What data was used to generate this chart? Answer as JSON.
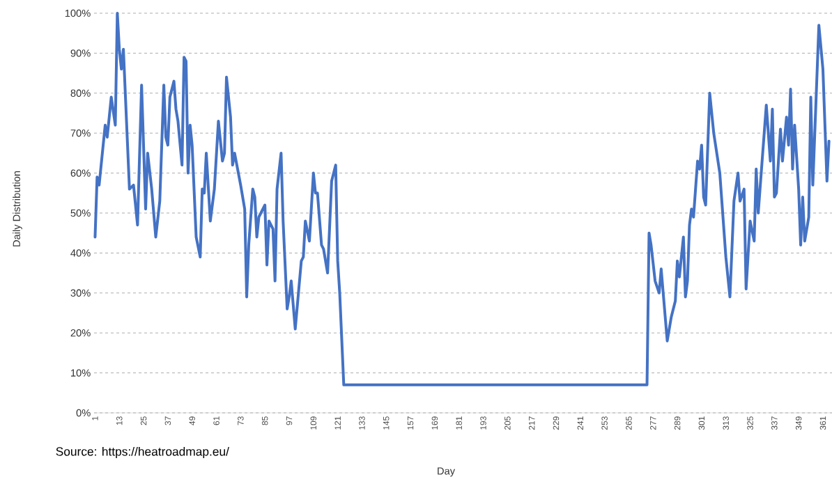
{
  "chart_data": {
    "type": "line",
    "xlabel": "Day",
    "ylabel": "Daily Distribution",
    "annotations": [
      "Source: https://heatroadmap.eu/"
    ],
    "x": [
      1,
      2,
      3,
      6,
      7,
      9,
      11,
      12,
      13,
      14,
      15,
      18,
      20,
      22,
      24,
      26,
      27,
      29,
      31,
      33,
      35,
      36,
      37,
      38,
      40,
      41,
      42,
      44,
      45,
      46,
      47,
      48,
      49,
      51,
      53,
      54,
      55,
      56,
      58,
      60,
      62,
      64,
      65,
      66,
      68,
      69,
      70,
      73,
      75,
      76,
      77,
      79,
      80,
      81,
      82,
      85,
      86,
      87,
      89,
      90,
      91,
      93,
      94,
      96,
      97,
      98,
      100,
      103,
      104,
      105,
      107,
      109,
      110,
      111,
      113,
      114,
      116,
      118,
      120,
      121,
      122,
      124,
      274,
      275,
      276,
      278,
      280,
      281,
      282,
      284,
      286,
      288,
      289,
      290,
      292,
      293,
      294,
      295,
      296,
      297,
      299,
      300,
      301,
      302,
      303,
      305,
      307,
      310,
      313,
      315,
      317,
      319,
      320,
      322,
      323,
      325,
      327,
      328,
      329,
      333,
      335,
      336,
      337,
      338,
      340,
      341,
      343,
      344,
      345,
      346,
      347,
      349,
      350,
      351,
      352,
      354,
      355,
      356,
      359,
      361,
      363,
      364
    ],
    "values": [
      44,
      59,
      57,
      72,
      69,
      79,
      72,
      100,
      91,
      86,
      91,
      56,
      57,
      47,
      82,
      51,
      65,
      56,
      44,
      53,
      82,
      69,
      67,
      79,
      83,
      76,
      73,
      62,
      89,
      88,
      60,
      72,
      67,
      44,
      39,
      56,
      55,
      65,
      48,
      56,
      73,
      63,
      65,
      84,
      74,
      62,
      65,
      57,
      51,
      29,
      42,
      56,
      54,
      44,
      49,
      52,
      37,
      48,
      46,
      33,
      56,
      65,
      48,
      26,
      29,
      33,
      21,
      38,
      39,
      48,
      43,
      60,
      55,
      55,
      42,
      41,
      35,
      58,
      62,
      38,
      30,
      7,
      7,
      45,
      42,
      33,
      30,
      36,
      30,
      18,
      24,
      28,
      38,
      34,
      44,
      29,
      33,
      47,
      51,
      49,
      63,
      61,
      67,
      54,
      52,
      80,
      70,
      60,
      39,
      29,
      53,
      60,
      53,
      56,
      31,
      48,
      43,
      61,
      50,
      77,
      63,
      76,
      54,
      55,
      71,
      63,
      74,
      67,
      81,
      61,
      72,
      56,
      42,
      54,
      43,
      49,
      79,
      57,
      97,
      86,
      58,
      68
    ],
    "color": "#4472c4",
    "xlim": [
      0.5,
      365.5
    ],
    "xticks": [
      1,
      13,
      25,
      37,
      49,
      61,
      73,
      85,
      97,
      109,
      121,
      133,
      145,
      157,
      169,
      181,
      193,
      205,
      217,
      229,
      241,
      253,
      265,
      277,
      289,
      301,
      313,
      325,
      337,
      349,
      361
    ],
    "ylim": [
      0,
      100
    ],
    "yticks": [
      {
        "value": 0,
        "label": "0%"
      },
      {
        "value": 10,
        "label": "10%"
      },
      {
        "value": 20,
        "label": "20%"
      },
      {
        "value": 30,
        "label": "30%"
      },
      {
        "value": 40,
        "label": "40%"
      },
      {
        "value": 50,
        "label": "50%"
      },
      {
        "value": 60,
        "label": "60%"
      },
      {
        "value": 70,
        "label": "70%"
      },
      {
        "value": 80,
        "label": "80%"
      },
      {
        "value": 90,
        "label": "90%"
      },
      {
        "value": 100,
        "label": "100%"
      }
    ],
    "grid": "y",
    "legend": false,
    "marker": "none",
    "line_style": "solid"
  }
}
